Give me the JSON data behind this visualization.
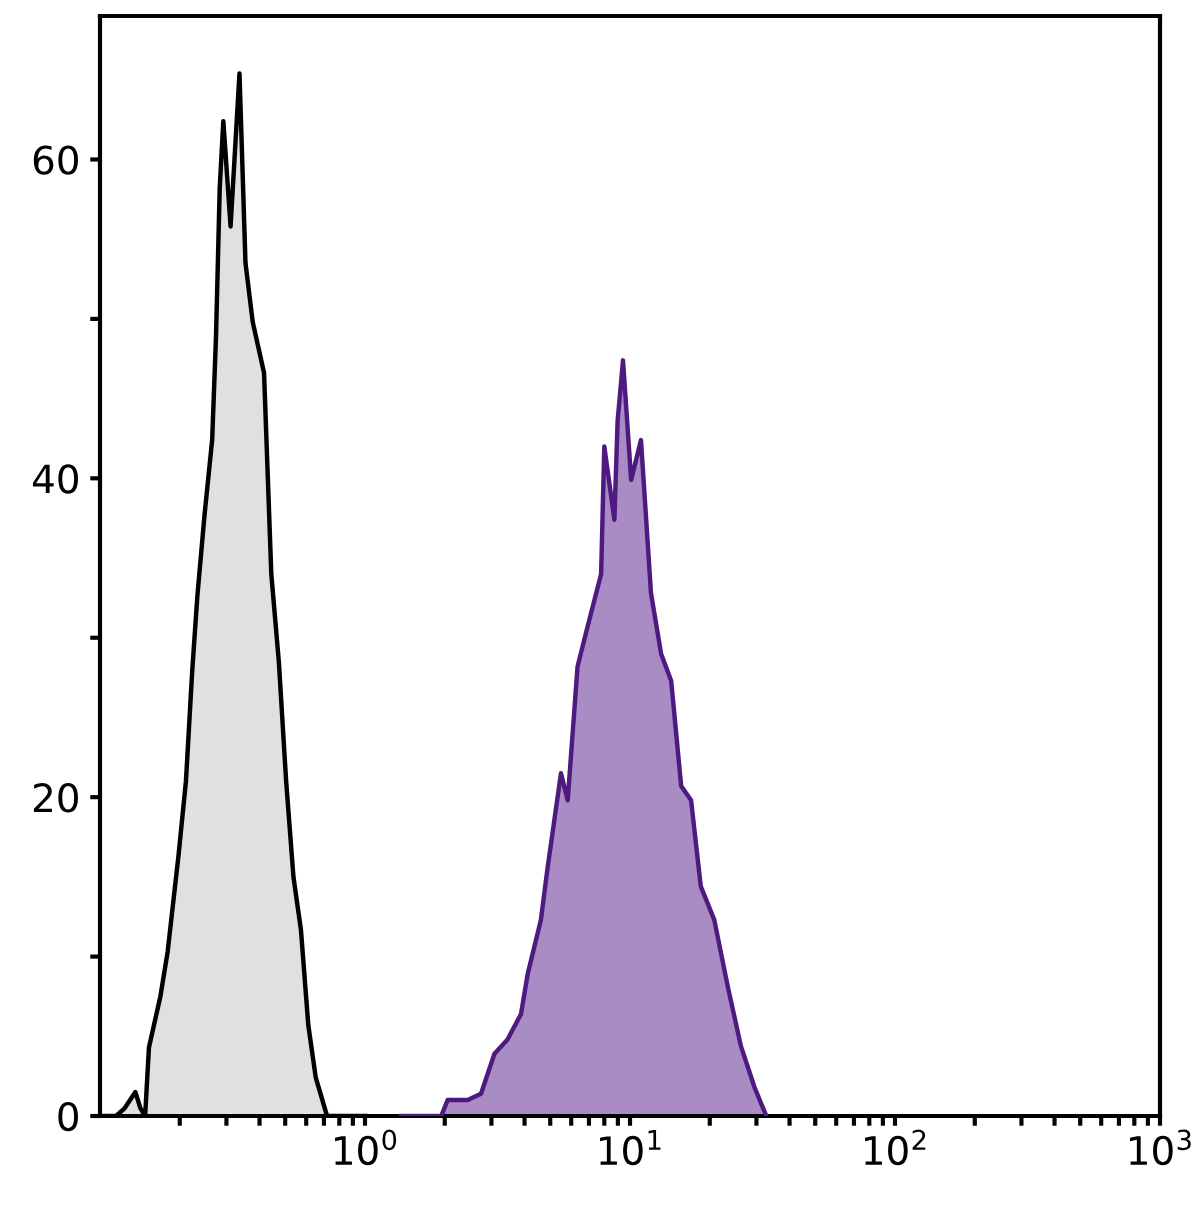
{
  "chart_data": {
    "type": "area",
    "log": "x",
    "xlim": [
      0.1,
      1000
    ],
    "ylim": [
      0,
      69
    ],
    "xticks": [
      {
        "value": 0.2,
        "label": null
      },
      {
        "value": 0.3,
        "label": null
      },
      {
        "value": 0.4,
        "label": null
      },
      {
        "value": 0.5,
        "label": null
      },
      {
        "value": 0.6,
        "label": null
      },
      {
        "value": 0.7,
        "label": null
      },
      {
        "value": 0.8,
        "label": null
      },
      {
        "value": 0.9,
        "label": null
      },
      {
        "value": 1,
        "label": "10$^{0}$"
      },
      {
        "value": 2,
        "label": null
      },
      {
        "value": 3,
        "label": null
      },
      {
        "value": 4,
        "label": null
      },
      {
        "value": 5,
        "label": null
      },
      {
        "value": 6,
        "label": null
      },
      {
        "value": 7,
        "label": null
      },
      {
        "value": 8,
        "label": null
      },
      {
        "value": 9,
        "label": null
      },
      {
        "value": 10,
        "label": "10$^{1}$"
      },
      {
        "value": 20,
        "label": null
      },
      {
        "value": 30,
        "label": null
      },
      {
        "value": 40,
        "label": null
      },
      {
        "value": 50,
        "label": null
      },
      {
        "value": 60,
        "label": null
      },
      {
        "value": 70,
        "label": null
      },
      {
        "value": 80,
        "label": null
      },
      {
        "value": 90,
        "label": null
      },
      {
        "value": 100,
        "label": "10$^{2}$"
      },
      {
        "value": 200,
        "label": null
      },
      {
        "value": 300,
        "label": null
      },
      {
        "value": 400,
        "label": null
      },
      {
        "value": 500,
        "label": null
      },
      {
        "value": 600,
        "label": null
      },
      {
        "value": 700,
        "label": null
      },
      {
        "value": 800,
        "label": null
      },
      {
        "value": 900,
        "label": null
      },
      {
        "value": 1000,
        "label": "10$^{3}$"
      }
    ],
    "yticks": [
      0,
      {
        "value": 10,
        "label": null
      },
      20,
      {
        "value": 30,
        "label": null
      },
      40,
      {
        "value": 50,
        "label": null
      },
      60
    ],
    "grid": false,
    "legend": false,
    "series": [
      {
        "color": "#000000",
        "x": [
          0.1,
          0.115,
          0.124,
          0.136,
          0.142,
          0.148,
          0.153,
          0.169,
          0.18,
          0.198,
          0.211,
          0.223,
          0.233,
          0.248,
          0.265,
          0.274,
          0.283,
          0.292,
          0.311,
          0.336,
          0.354,
          0.377,
          0.416,
          0.443,
          0.473,
          0.504,
          0.537,
          0.573,
          0.611,
          0.652,
          0.719,
          1.0
        ],
        "values": [
          0,
          0,
          0.5,
          1.5,
          0.5,
          0,
          4.3,
          7.5,
          10.3,
          16.4,
          21,
          28,
          32.6,
          37.7,
          42.4,
          48.9,
          58.2,
          62.4,
          55.8,
          65.4,
          53.5,
          49.8,
          46.6,
          34,
          28.5,
          21,
          15,
          11.7,
          5.7,
          2.4,
          0,
          0
        ]
      },
      {
        "color": "#4f1a80",
        "x": [
          1.37,
          1.94,
          2.05,
          2.44,
          2.74,
          3.08,
          3.45,
          3.88,
          4.11,
          4.61,
          4.89,
          5.49,
          5.82,
          6.34,
          6.92,
          7.78,
          8.0,
          8.73,
          8.98,
          9.41,
          10.1,
          11.0,
          12.0,
          13.1,
          14.3,
          15.6,
          17.0,
          18.5,
          20.8,
          23.4,
          26.2,
          29.5,
          32.7
        ],
        "values": [
          0,
          0,
          1.0,
          1.0,
          1.4,
          3.9,
          4.8,
          6.4,
          8.9,
          12.3,
          15.6,
          21.5,
          19.8,
          28.2,
          30.7,
          34,
          42,
          37.4,
          43.6,
          47.4,
          39.9,
          42.4,
          32.8,
          29,
          27.3,
          20.7,
          19.8,
          14.4,
          12.3,
          8.1,
          4.4,
          1.8,
          0
        ]
      }
    ]
  }
}
